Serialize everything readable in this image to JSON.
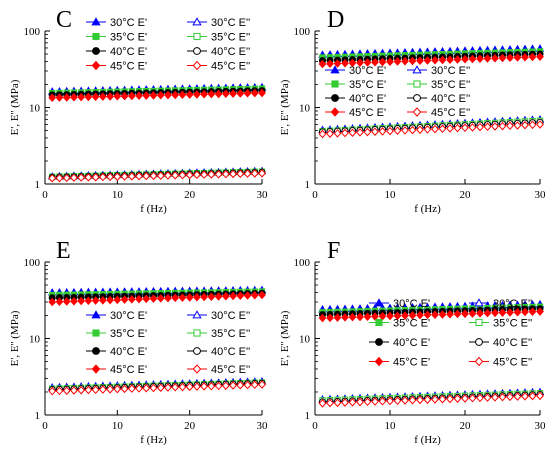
{
  "figure": {
    "panels": [
      "C",
      "D",
      "E",
      "F"
    ]
  },
  "chart_data": [
    {
      "panel": "C",
      "type": "scatter",
      "xlabel": "f (Hz)",
      "ylabel": "E', E'' (MPa)",
      "xlim": [
        0,
        30
      ],
      "ylim": [
        1,
        100
      ],
      "yscale": "log",
      "xticks": [
        0,
        10,
        20,
        30
      ],
      "yticks": [
        1,
        10,
        100
      ],
      "legend_position": "top",
      "series": [
        {
          "name": "30°C  E'",
          "color": "#0000ff",
          "marker": "triangle",
          "fill": true,
          "start": 16.2,
          "end": 18.5
        },
        {
          "name": "35°C  E'",
          "color": "#33cc33",
          "marker": "square",
          "fill": true,
          "start": 15.4,
          "end": 17.6
        },
        {
          "name": "40°C  E'",
          "color": "#000000",
          "marker": "circle",
          "fill": true,
          "start": 14.6,
          "end": 16.6
        },
        {
          "name": "45°C  E'",
          "color": "#ff0000",
          "marker": "diamond",
          "fill": true,
          "start": 13.4,
          "end": 15.5
        },
        {
          "name": "30°C  E''",
          "color": "#0000ff",
          "marker": "triangle",
          "fill": false,
          "start": 1.26,
          "end": 1.48
        },
        {
          "name": "35°C  E''",
          "color": "#33cc33",
          "marker": "square",
          "fill": false,
          "start": 1.24,
          "end": 1.45
        },
        {
          "name": "40°C  E''",
          "color": "#000000",
          "marker": "circle",
          "fill": false,
          "start": 1.22,
          "end": 1.42
        },
        {
          "name": "45°C  E''",
          "color": "#ff0000",
          "marker": "diamond",
          "fill": false,
          "start": 1.19,
          "end": 1.38
        }
      ]
    },
    {
      "panel": "D",
      "type": "scatter",
      "xlabel": "f (Hz)",
      "ylabel": "E', E'' (MPa)",
      "xlim": [
        0,
        30
      ],
      "ylim": [
        1,
        100
      ],
      "yscale": "log",
      "xticks": [
        0,
        10,
        20,
        30
      ],
      "yticks": [
        1,
        10,
        100
      ],
      "legend_position": "middle",
      "series": [
        {
          "name": "30°C  E'",
          "color": "#0000ff",
          "marker": "triangle",
          "fill": true,
          "start": 49,
          "end": 59
        },
        {
          "name": "35°C  E'",
          "color": "#33cc33",
          "marker": "square",
          "fill": true,
          "start": 45,
          "end": 54
        },
        {
          "name": "40°C  E'",
          "color": "#000000",
          "marker": "circle",
          "fill": true,
          "start": 41,
          "end": 50
        },
        {
          "name": "45°C  E'",
          "color": "#ff0000",
          "marker": "diamond",
          "fill": true,
          "start": 37,
          "end": 46
        },
        {
          "name": "30°C  E''",
          "color": "#0000ff",
          "marker": "triangle",
          "fill": false,
          "start": 5.1,
          "end": 7.0
        },
        {
          "name": "35°C  E''",
          "color": "#33cc33",
          "marker": "square",
          "fill": false,
          "start": 4.9,
          "end": 6.7
        },
        {
          "name": "40°C  E''",
          "color": "#000000",
          "marker": "circle",
          "fill": false,
          "start": 4.8,
          "end": 6.4
        },
        {
          "name": "45°C  E''",
          "color": "#ff0000",
          "marker": "diamond",
          "fill": false,
          "start": 4.5,
          "end": 6.0
        }
      ]
    },
    {
      "panel": "E",
      "type": "scatter",
      "xlabel": "f (Hz)",
      "ylabel": "E', E'' (MPa)",
      "xlim": [
        0,
        30
      ],
      "ylim": [
        1,
        100
      ],
      "yscale": "log",
      "xticks": [
        0,
        10,
        20,
        30
      ],
      "yticks": [
        1,
        10,
        100
      ],
      "legend_position": "middle",
      "series": [
        {
          "name": "30°C  E'",
          "color": "#0000ff",
          "marker": "triangle",
          "fill": true,
          "start": 40,
          "end": 43
        },
        {
          "name": "35°C  E'",
          "color": "#33cc33",
          "marker": "square",
          "fill": true,
          "start": 37,
          "end": 41
        },
        {
          "name": "40°C  E'",
          "color": "#000000",
          "marker": "circle",
          "fill": true,
          "start": 34,
          "end": 39
        },
        {
          "name": "45°C  E'",
          "color": "#ff0000",
          "marker": "diamond",
          "fill": true,
          "start": 30,
          "end": 37
        },
        {
          "name": "30°C  E''",
          "color": "#0000ff",
          "marker": "triangle",
          "fill": false,
          "start": 2.3,
          "end": 2.75
        },
        {
          "name": "35°C  E''",
          "color": "#33cc33",
          "marker": "square",
          "fill": false,
          "start": 2.2,
          "end": 2.65
        },
        {
          "name": "40°C  E''",
          "color": "#000000",
          "marker": "circle",
          "fill": false,
          "start": 2.15,
          "end": 2.6
        },
        {
          "name": "45°C  E''",
          "color": "#ff0000",
          "marker": "diamond",
          "fill": false,
          "start": 2.05,
          "end": 2.5
        }
      ]
    },
    {
      "panel": "F",
      "type": "scatter",
      "xlabel": "f (Hz)",
      "ylabel": "E', E'' (MPa)",
      "xlim": [
        0,
        30
      ],
      "ylim": [
        1,
        100
      ],
      "yscale": "log",
      "xticks": [
        0,
        10,
        20,
        30
      ],
      "yticks": [
        1,
        10,
        100
      ],
      "legend_position": "middle",
      "series": [
        {
          "name": "30°C  E'",
          "color": "#0000ff",
          "marker": "triangle",
          "fill": true,
          "start": 24,
          "end": 28
        },
        {
          "name": "35°C  E'",
          "color": "#33cc33",
          "marker": "square",
          "fill": true,
          "start": 22,
          "end": 26
        },
        {
          "name": "40°C  E'",
          "color": "#000000",
          "marker": "circle",
          "fill": true,
          "start": 20.5,
          "end": 24.5
        },
        {
          "name": "45°C  E'",
          "color": "#ff0000",
          "marker": "diamond",
          "fill": true,
          "start": 18.5,
          "end": 22.5
        },
        {
          "name": "30°C  E''",
          "color": "#0000ff",
          "marker": "triangle",
          "fill": false,
          "start": 1.6,
          "end": 2.0
        },
        {
          "name": "35°C  E''",
          "color": "#33cc33",
          "marker": "square",
          "fill": false,
          "start": 1.55,
          "end": 1.92
        },
        {
          "name": "40°C  E''",
          "color": "#000000",
          "marker": "circle",
          "fill": false,
          "start": 1.48,
          "end": 1.85
        },
        {
          "name": "45°C  E''",
          "color": "#ff0000",
          "marker": "diamond",
          "fill": false,
          "start": 1.42,
          "end": 1.78
        }
      ]
    }
  ]
}
